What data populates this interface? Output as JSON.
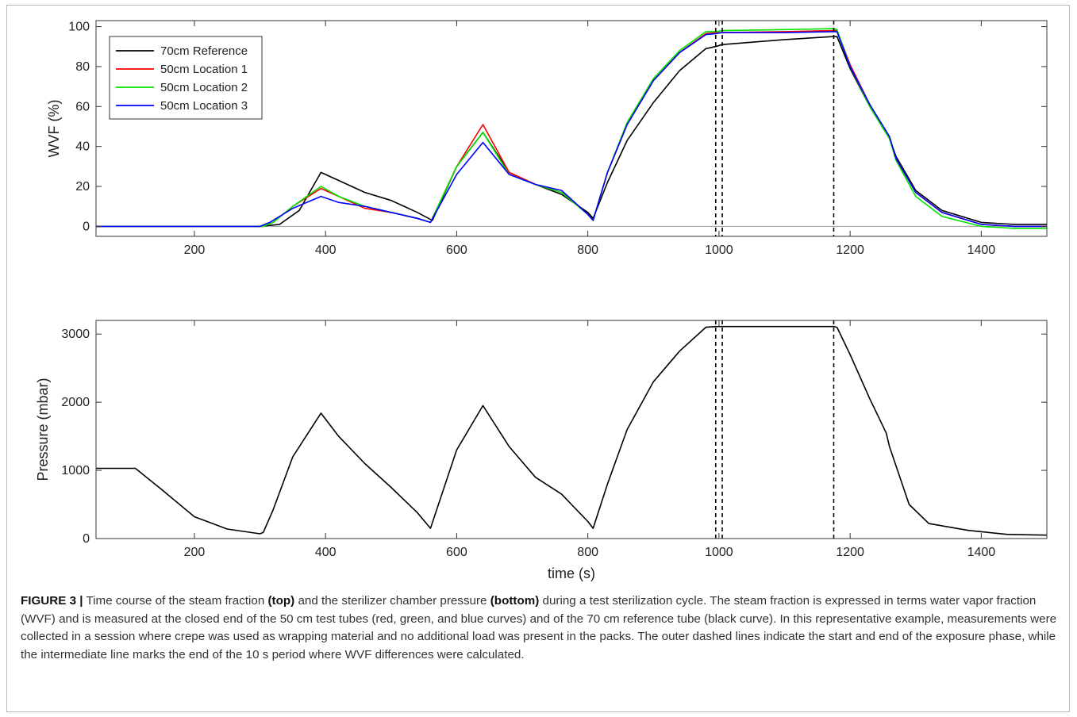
{
  "colors": {
    "ref": "#000000",
    "loc1": "#ff0000",
    "loc2": "#00e600",
    "loc3": "#0000ff",
    "text": "#222222"
  },
  "chart_data": [
    {
      "type": "line",
      "xlabel": "",
      "ylabel": "WVF (%)",
      "xlim": [
        50,
        1500
      ],
      "ylim": [
        -5,
        103
      ],
      "xticks": [
        200,
        400,
        600,
        800,
        1000,
        1200,
        1400
      ],
      "yticks": [
        0,
        20,
        40,
        60,
        80,
        100
      ],
      "legend_position": "top-left",
      "vlines": [
        995,
        1005,
        1175
      ],
      "series": [
        {
          "name": "70cm Reference",
          "color_key": "ref",
          "x": [
            50,
            300,
            330,
            360,
            393,
            420,
            460,
            500,
            540,
            563,
            600,
            640,
            680,
            720,
            760,
            800,
            808,
            830,
            860,
            900,
            940,
            980,
            995,
            1005,
            1100,
            1175,
            1180,
            1200,
            1230,
            1260,
            1270,
            1300,
            1340,
            1400,
            1450,
            1500
          ],
          "y": [
            0,
            0,
            1,
            8,
            27,
            23,
            17,
            13,
            7,
            3,
            30,
            47,
            27,
            21,
            16,
            7,
            4,
            22,
            43,
            62,
            78,
            89,
            90,
            91,
            93.5,
            95,
            95,
            79,
            60,
            44,
            35,
            18,
            8,
            2,
            1,
            1
          ]
        },
        {
          "name": "50cm Location 1",
          "color_key": "loc1",
          "x": [
            50,
            305,
            320,
            350,
            393,
            420,
            460,
            500,
            540,
            560,
            600,
            640,
            680,
            720,
            760,
            800,
            808,
            830,
            860,
            900,
            940,
            980,
            995,
            1005,
            1100,
            1175,
            1180,
            1200,
            1230,
            1260,
            1270,
            1300,
            1340,
            1400,
            1450,
            1500
          ],
          "y": [
            0,
            0,
            2,
            10,
            19,
            15,
            9,
            7,
            4,
            2,
            30,
            51,
            27,
            21,
            17,
            6,
            3,
            27,
            51,
            73,
            87,
            96.5,
            97,
            97,
            97.5,
            98,
            98,
            81,
            61,
            44,
            34,
            17,
            7,
            1,
            0,
            0
          ]
        },
        {
          "name": "50cm Location 2",
          "color_key": "loc2",
          "x": [
            50,
            305,
            320,
            350,
            393,
            420,
            460,
            500,
            540,
            560,
            600,
            640,
            680,
            720,
            760,
            800,
            808,
            830,
            860,
            900,
            940,
            980,
            995,
            1005,
            1100,
            1175,
            1180,
            1200,
            1230,
            1260,
            1270,
            1300,
            1340,
            1400,
            1450,
            1500
          ],
          "y": [
            0,
            0,
            2,
            10,
            20,
            15,
            10,
            7,
            4,
            2,
            30,
            47,
            26,
            21,
            17,
            6,
            3,
            27,
            52,
            74,
            88,
            97.5,
            97.5,
            98,
            98.5,
            99,
            98.5,
            80,
            60,
            44,
            33,
            15,
            5,
            0,
            -1,
            -1
          ]
        },
        {
          "name": "50cm Location 3",
          "color_key": "loc3",
          "x": [
            50,
            300,
            315,
            350,
            393,
            420,
            460,
            500,
            540,
            560,
            600,
            640,
            680,
            720,
            760,
            800,
            808,
            830,
            860,
            900,
            940,
            980,
            995,
            1005,
            1100,
            1175,
            1180,
            1200,
            1230,
            1260,
            1270,
            1300,
            1340,
            1400,
            1450,
            1500
          ],
          "y": [
            0,
            0,
            2,
            9,
            15,
            12,
            10,
            7,
            4,
            2,
            26,
            42,
            26,
            21,
            18,
            6,
            3,
            27,
            51,
            73,
            87,
            96,
            96.5,
            97,
            97,
            97.5,
            97.5,
            80,
            61,
            45,
            34,
            17,
            7,
            1,
            0,
            0
          ]
        }
      ]
    },
    {
      "type": "line",
      "xlabel": "time (s)",
      "ylabel": "Pressure (mbar)",
      "xlim": [
        50,
        1500
      ],
      "ylim": [
        0,
        3200
      ],
      "xticks": [
        200,
        400,
        600,
        800,
        1000,
        1200,
        1400
      ],
      "yticks": [
        0,
        1000,
        2000,
        3000
      ],
      "vlines": [
        995,
        1005,
        1175
      ],
      "series": [
        {
          "color_key": "ref",
          "x": [
            50,
            110,
            150,
            200,
            250,
            300,
            305,
            320,
            350,
            393,
            420,
            460,
            500,
            540,
            560,
            600,
            640,
            680,
            720,
            760,
            800,
            808,
            830,
            860,
            900,
            940,
            980,
            995,
            1005,
            1100,
            1175,
            1180,
            1200,
            1230,
            1255,
            1260,
            1290,
            1320,
            1380,
            1440,
            1500
          ],
          "y": [
            1030,
            1030,
            720,
            320,
            140,
            70,
            90,
            420,
            1200,
            1840,
            1500,
            1100,
            750,
            380,
            150,
            1300,
            1950,
            1350,
            900,
            650,
            250,
            150,
            800,
            1600,
            2300,
            2750,
            3100,
            3110,
            3110,
            3110,
            3110,
            3100,
            2700,
            2050,
            1550,
            1350,
            500,
            220,
            120,
            60,
            50
          ]
        }
      ]
    }
  ],
  "caption": {
    "label": "FIGURE 3 |",
    "t1": " Time course of the steam fraction ",
    "b1": "(top)",
    "t2": " and the sterilizer chamber pressure ",
    "b2": "(bottom)",
    "t3": " during a test sterilization cycle. The steam fraction is expressed in terms water vapor fraction (WVF) and is measured at the closed end of the 50 cm test tubes (red, green, and blue curves) and of the 70 cm reference tube (black curve). In this representative example, measurements were collected in a session where crepe was used as wrapping material and no additional load was present in the packs. The outer dashed lines indicate the start and end of the exposure phase, while the intermediate line marks the end of the 10 s period where WVF differences were calculated."
  }
}
